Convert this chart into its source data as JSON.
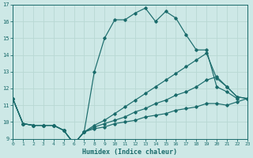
{
  "xlabel": "Humidex (Indice chaleur)",
  "xlim": [
    0,
    23
  ],
  "ylim": [
    9,
    17
  ],
  "xticks": [
    0,
    1,
    2,
    3,
    4,
    5,
    6,
    7,
    8,
    9,
    10,
    11,
    12,
    13,
    14,
    15,
    16,
    17,
    18,
    19,
    20,
    21,
    22,
    23
  ],
  "yticks": [
    9,
    10,
    11,
    12,
    13,
    14,
    15,
    16,
    17
  ],
  "bg_color": "#cde8e6",
  "line_color": "#1a6b6b",
  "grid_major_color": "#b0d8d8",
  "grid_minor_color": "#ffffff",
  "series": [
    {
      "x": [
        0,
        1,
        2,
        3,
        4,
        5,
        6,
        7,
        8,
        9,
        10,
        11,
        12,
        13,
        14,
        15,
        16,
        17,
        18,
        19,
        20,
        21,
        22
      ],
      "y": [
        11.4,
        9.9,
        9.8,
        9.8,
        9.8,
        9.5,
        8.7,
        9.4,
        13.0,
        15.0,
        16.1,
        16.1,
        16.5,
        16.8,
        16.0,
        16.6,
        16.2,
        15.2,
        14.3,
        14.3,
        12.1,
        11.8,
        11.4
      ]
    },
    {
      "x": [
        0,
        1,
        2,
        3,
        4,
        5,
        6,
        7,
        8,
        9,
        10,
        11,
        12,
        13,
        14,
        15,
        16,
        17,
        18,
        19,
        20,
        21,
        22,
        23
      ],
      "y": [
        11.4,
        9.9,
        9.8,
        9.8,
        9.8,
        9.5,
        8.7,
        9.4,
        9.8,
        10.1,
        10.5,
        10.9,
        11.3,
        11.7,
        12.1,
        12.5,
        12.9,
        13.3,
        13.7,
        14.1,
        12.6,
        12.1,
        11.5,
        11.4
      ]
    },
    {
      "x": [
        0,
        1,
        2,
        3,
        4,
        5,
        6,
        7,
        8,
        9,
        10,
        11,
        12,
        13,
        14,
        15,
        16,
        17,
        18,
        19,
        20,
        21,
        22,
        23
      ],
      "y": [
        11.4,
        9.9,
        9.8,
        9.8,
        9.8,
        9.5,
        8.7,
        9.4,
        9.7,
        9.9,
        10.1,
        10.3,
        10.6,
        10.8,
        11.1,
        11.3,
        11.6,
        11.8,
        12.1,
        12.5,
        12.7,
        12.1,
        11.5,
        11.4
      ]
    },
    {
      "x": [
        0,
        1,
        2,
        3,
        4,
        5,
        6,
        7,
        8,
        9,
        10,
        11,
        12,
        13,
        14,
        15,
        16,
        17,
        18,
        19,
        20,
        21,
        22,
        23
      ],
      "y": [
        11.4,
        9.9,
        9.8,
        9.8,
        9.8,
        9.5,
        8.7,
        9.4,
        9.6,
        9.7,
        9.9,
        10.0,
        10.1,
        10.3,
        10.4,
        10.5,
        10.7,
        10.8,
        10.9,
        11.1,
        11.1,
        11.0,
        11.2,
        11.4
      ]
    }
  ]
}
